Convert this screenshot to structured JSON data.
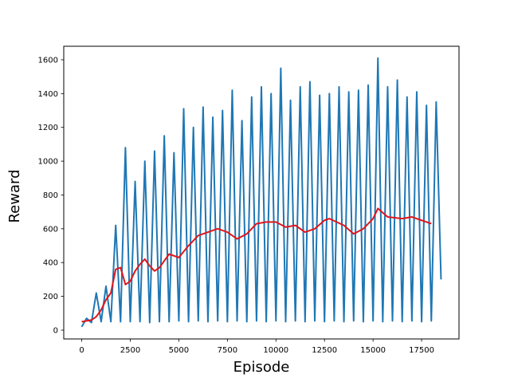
{
  "chart_data": {
    "type": "line",
    "x_label": "Episode",
    "y_label": "Reward",
    "xlim": [
      -925,
      19425
    ],
    "ylim": [
      -52,
      1680
    ],
    "xticks": [
      0,
      2500,
      5000,
      7500,
      10000,
      12500,
      15000,
      17500
    ],
    "yticks": [
      0,
      200,
      400,
      600,
      800,
      1000,
      1200,
      1400,
      1600
    ],
    "grid": false,
    "series": [
      {
        "color": "#1f77b4",
        "width": 2,
        "x": [
          0,
          250,
          500,
          750,
          1000,
          1250,
          1500,
          1750,
          2000,
          2250,
          2500,
          2750,
          3000,
          3250,
          3500,
          3750,
          4000,
          4250,
          4500,
          4750,
          5000,
          5250,
          5500,
          5750,
          6000,
          6250,
          6500,
          6750,
          7000,
          7250,
          7500,
          7750,
          8000,
          8250,
          8500,
          8750,
          9000,
          9250,
          9500,
          9750,
          10000,
          10250,
          10500,
          10750,
          11000,
          11250,
          11500,
          11750,
          12000,
          12250,
          12500,
          12750,
          13000,
          13250,
          13500,
          13750,
          14000,
          14250,
          14500,
          14750,
          15000,
          15250,
          15500,
          15750,
          16000,
          16250,
          16500,
          16750,
          17000,
          17250,
          17500,
          17750,
          18000,
          18250,
          18500
        ],
        "values": [
          20,
          70,
          45,
          220,
          50,
          260,
          50,
          620,
          50,
          1080,
          50,
          880,
          50,
          1000,
          45,
          1060,
          50,
          1150,
          50,
          1050,
          55,
          1310,
          50,
          1200,
          55,
          1320,
          50,
          1260,
          55,
          1300,
          50,
          1420,
          55,
          1240,
          50,
          1380,
          55,
          1440,
          50,
          1400,
          55,
          1550,
          50,
          1360,
          55,
          1440,
          50,
          1470,
          55,
          1390,
          50,
          1400,
          55,
          1440,
          50,
          1410,
          55,
          1420,
          50,
          1450,
          55,
          1610,
          50,
          1440,
          55,
          1480,
          50,
          1380,
          55,
          1410,
          50,
          1330,
          55,
          1350,
          300
        ]
      },
      {
        "color": "#e0161c",
        "width": 2,
        "x": [
          0,
          250,
          500,
          750,
          1000,
          1250,
          1500,
          1750,
          2000,
          2250,
          2500,
          2750,
          3000,
          3250,
          3500,
          3750,
          4000,
          4500,
          5000,
          5500,
          6000,
          6500,
          7000,
          7500,
          8000,
          8500,
          9000,
          9500,
          10000,
          10500,
          11000,
          11500,
          12000,
          12500,
          12750,
          13500,
          14000,
          14500,
          15000,
          15250,
          15750,
          16500,
          17000,
          17500,
          18000
        ],
        "values": [
          50,
          55,
          60,
          80,
          120,
          180,
          220,
          360,
          370,
          270,
          290,
          350,
          390,
          420,
          380,
          350,
          370,
          450,
          430,
          500,
          560,
          580,
          600,
          580,
          540,
          570,
          630,
          640,
          640,
          610,
          620,
          580,
          600,
          650,
          660,
          620,
          570,
          600,
          660,
          720,
          670,
          660,
          670,
          650,
          630
        ]
      }
    ]
  }
}
